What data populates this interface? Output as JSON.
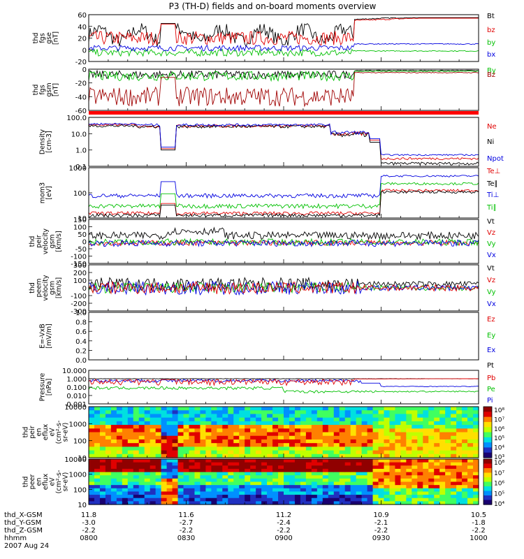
{
  "title": "P3 (TH-D) fields and on-board moments overview",
  "date": "2007 Aug 24",
  "colors": {
    "black": "#000000",
    "red": "#e00000",
    "green": "#00c000",
    "blue": "#0000e0",
    "darkred": "#a00000"
  },
  "chart_data": [
    {
      "type": "line",
      "id": "fgs_gse",
      "ylabel": [
        "thd",
        "fgs",
        "gse",
        "[nT]"
      ],
      "ylim": [
        -20,
        60
      ],
      "ticks": [
        "60",
        "40",
        "20",
        "0",
        "-20"
      ],
      "legend": [
        "Bt",
        "bz",
        "by",
        "bx"
      ],
      "legend_colors": [
        "black",
        "red",
        "green",
        "blue"
      ]
    },
    {
      "type": "line",
      "id": "fgs_gsm",
      "ylabel": [
        "thd",
        "fgs",
        "gsm",
        "[nT]"
      ],
      "ylim": [
        -60,
        0
      ],
      "ticks": [
        "0",
        "-20",
        "-40",
        "-60"
      ],
      "legend": [
        "By",
        "Bz"
      ],
      "legend_colors": [
        "green",
        "darkred"
      ]
    },
    {
      "type": "line",
      "id": "density",
      "ylabel": [
        "Density",
        "[cm-3]"
      ],
      "ylim": [
        0.1,
        100
      ],
      "scale": "log",
      "ticks": [
        "100.0",
        "10.0",
        "1.0",
        "0.1"
      ],
      "legend": [
        "Ne",
        "Ni",
        "Npot"
      ],
      "legend_colors": [
        "red",
        "black",
        "blue"
      ]
    },
    {
      "type": "line",
      "id": "temp",
      "ylabel": [
        "mom3",
        "[eV]"
      ],
      "ylim": [
        10,
        5000
      ],
      "scale": "log",
      "ticks": [
        "1000",
        "100",
        "10"
      ],
      "legend": [
        "Te⊥",
        "Te∥",
        "Ti⊥",
        "Ti∥"
      ],
      "legend_colors": [
        "red",
        "black",
        "blue",
        "green"
      ]
    },
    {
      "type": "line",
      "id": "peir_v",
      "ylabel": [
        "thd",
        "peir",
        "velocity",
        "gsm",
        "[km/s]"
      ],
      "ylim": [
        -150,
        150
      ],
      "ticks": [
        "150",
        "100",
        "50",
        "0",
        "-50",
        "-100",
        "-150"
      ],
      "legend": [
        "Vt",
        "Vz",
        "Vy",
        "Vx"
      ],
      "legend_colors": [
        "black",
        "red",
        "green",
        "blue"
      ]
    },
    {
      "type": "line",
      "id": "peem_v",
      "ylabel": [
        "thd",
        "peem",
        "velocity",
        "gsm",
        "[km/s]"
      ],
      "ylim": [
        -300,
        300
      ],
      "ticks": [
        "300",
        "200",
        "100",
        "0",
        "-100",
        "-200",
        "-300"
      ],
      "legend": [
        "Vt",
        "Vz",
        "Vy",
        "Vx"
      ],
      "legend_colors": [
        "black",
        "red",
        "green",
        "blue"
      ]
    },
    {
      "type": "line",
      "id": "efield",
      "ylabel": [
        "E=-VxB",
        "[mV/m]"
      ],
      "ylim": [
        0,
        1
      ],
      "ticks": [
        "1.0",
        "0.8",
        "0.6",
        "0.4",
        "0.2",
        "0.0"
      ],
      "legend": [
        "Ez",
        "Ey",
        "Ex"
      ],
      "legend_colors": [
        "red",
        "green",
        "blue"
      ]
    },
    {
      "type": "line",
      "id": "pressure",
      "ylabel": [
        "Pressure",
        "[nPa]"
      ],
      "ylim": [
        0.001,
        10
      ],
      "scale": "log",
      "ticks": [
        "10.000",
        "1.000",
        "0.100",
        "0.010",
        "0.001"
      ],
      "legend": [
        "Pt",
        "Pb",
        "Pe",
        "Pi"
      ],
      "legend_colors": [
        "black",
        "red",
        "green",
        "blue"
      ]
    },
    {
      "type": "heatmap",
      "id": "peir_spec",
      "ylabel": [
        "thd",
        "peir",
        "en",
        "eflux",
        "eV",
        "(cm²-s-",
        "sr-eV)"
      ],
      "ylim": [
        10,
        20000
      ],
      "scale": "log",
      "ticks": [
        "10000",
        "1000",
        "100",
        "10"
      ],
      "colorbar_ticks": [
        "10⁸",
        "10⁷",
        "10⁶",
        "10⁵",
        "10⁴",
        "10³"
      ]
    },
    {
      "type": "heatmap",
      "id": "peer_spec",
      "ylabel": [
        "thd",
        "peer",
        "en",
        "eflux",
        "eV",
        "(cm²-s-",
        "sr-eV)"
      ],
      "ylim": [
        10,
        20000
      ],
      "scale": "log",
      "ticks": [
        "10000",
        "1000",
        "100",
        "10"
      ],
      "colorbar_ticks": [
        "10⁸",
        "10⁷",
        "10⁶",
        "10⁵",
        "10⁴"
      ]
    }
  ],
  "xaxis": {
    "labels": [
      "thd_X-GSM",
      "thd_Y-GSM",
      "thd_Z-GSM",
      "hhmm"
    ],
    "columns": [
      [
        "11.8",
        "-3.0",
        "-2.2",
        "0800"
      ],
      [
        "11.6",
        "-2.7",
        "-2.2",
        "0830"
      ],
      [
        "11.2",
        "-2.4",
        "-2.2",
        "0900"
      ],
      [
        "10.9",
        "-2.1",
        "-2.2",
        "0930"
      ],
      [
        "10.5",
        "-1.8",
        "-2.2",
        "1000"
      ]
    ]
  }
}
